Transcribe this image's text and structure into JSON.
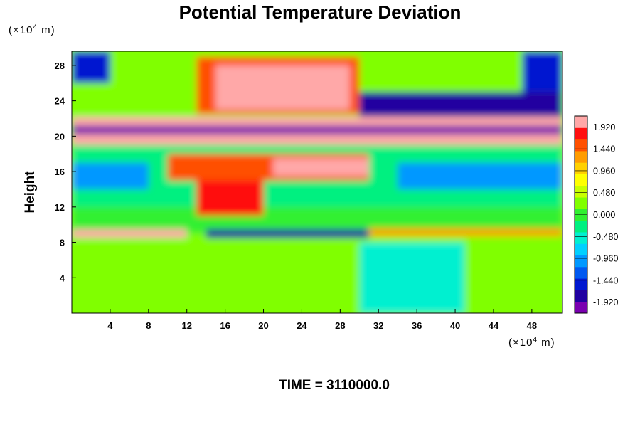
{
  "chart_data": {
    "type": "heatmap",
    "title": "Potential Temperature Deviation",
    "ylabel": "Height",
    "xlabel": "",
    "x_unit_prefix": "(×10",
    "x_unit_exp": "4",
    "x_unit_suffix": " m)",
    "y_unit_prefix": "(×10",
    "y_unit_exp": "4",
    "y_unit_suffix": " m)",
    "footer": "TIME = 3110000.0",
    "xlim": [
      0,
      51.2
    ],
    "ylim": [
      0,
      29.6
    ],
    "x_ticks": [
      4,
      8,
      12,
      16,
      20,
      24,
      28,
      32,
      36,
      40,
      44,
      48
    ],
    "y_ticks": [
      4,
      8,
      12,
      16,
      20,
      24,
      28
    ],
    "colorbar": {
      "min": -2.16,
      "max": 2.16,
      "labels": [
        "1.920",
        "1.440",
        "0.960",
        "0.480",
        "0.000",
        "-0.480",
        "-0.960",
        "-1.440",
        "-1.920"
      ],
      "label_values": [
        1.92,
        1.44,
        0.96,
        0.48,
        0.0,
        -0.48,
        -0.96,
        -1.44,
        -1.92
      ],
      "colors": [
        "#7a00b0",
        "#2000a0",
        "#0018d0",
        "#0058f0",
        "#0098ff",
        "#00d0ff",
        "#00f0d0",
        "#00f080",
        "#30f030",
        "#80ff00",
        "#c8ff00",
        "#ffff00",
        "#ffd000",
        "#ff9c00",
        "#ff5000",
        "#ff1010",
        "#ffa8a8"
      ]
    },
    "regions": [
      {
        "x0": 0,
        "x1": 51.2,
        "y0": 0,
        "y1": 9,
        "value": 0.2
      },
      {
        "x0": 0,
        "x1": 51.2,
        "y0": 9,
        "y1": 12,
        "value": -0.1
      },
      {
        "x0": 0,
        "x1": 51.2,
        "y0": 12,
        "y1": 19,
        "value": -0.3
      },
      {
        "x0": 0,
        "x1": 51.2,
        "y0": 22.5,
        "y1": 29.6,
        "value": 0.3
      },
      {
        "x0": 0,
        "x1": 4,
        "y0": 26,
        "y1": 29.6,
        "value": -1.6
      },
      {
        "x0": 47,
        "x1": 51.2,
        "y0": 25,
        "y1": 29.6,
        "value": -1.6
      },
      {
        "x0": 13,
        "x1": 30,
        "y0": 22.5,
        "y1": 29,
        "value": 1.5
      },
      {
        "x0": 15,
        "x1": 29,
        "y0": 23,
        "y1": 28,
        "value": 2.1
      },
      {
        "x0": 30,
        "x1": 51.2,
        "y0": 22,
        "y1": 25,
        "value": -1.9
      },
      {
        "x0": 0,
        "x1": 51.2,
        "y0": 19,
        "y1": 20.2,
        "value": 2.1
      },
      {
        "x0": 0,
        "x1": 51.2,
        "y0": 20.2,
        "y1": 21.2,
        "value": -2.0
      },
      {
        "x0": 0,
        "x1": 51.2,
        "y0": 21.2,
        "y1": 22.2,
        "value": 2.1
      },
      {
        "x0": 10,
        "x1": 31,
        "y0": 15,
        "y1": 18,
        "value": 1.4
      },
      {
        "x0": 21,
        "x1": 31,
        "y0": 15.5,
        "y1": 17.5,
        "value": 2.0
      },
      {
        "x0": 13,
        "x1": 20,
        "y0": 11,
        "y1": 15,
        "value": 1.9
      },
      {
        "x0": 0,
        "x1": 8,
        "y0": 14,
        "y1": 17,
        "value": -1.0
      },
      {
        "x0": 34,
        "x1": 51.2,
        "y0": 14,
        "y1": 17,
        "value": -1.1
      },
      {
        "x0": 0,
        "x1": 12,
        "y0": 8.5,
        "y1": 9.5,
        "value": 2.0
      },
      {
        "x0": 14,
        "x1": 31,
        "y0": 8.5,
        "y1": 9.5,
        "value": -1.9
      },
      {
        "x0": 31,
        "x1": 51.2,
        "y0": 8.7,
        "y1": 9.6,
        "value": 1.2
      },
      {
        "x0": 30,
        "x1": 41,
        "y0": 0,
        "y1": 8,
        "value": -0.5
      }
    ]
  }
}
